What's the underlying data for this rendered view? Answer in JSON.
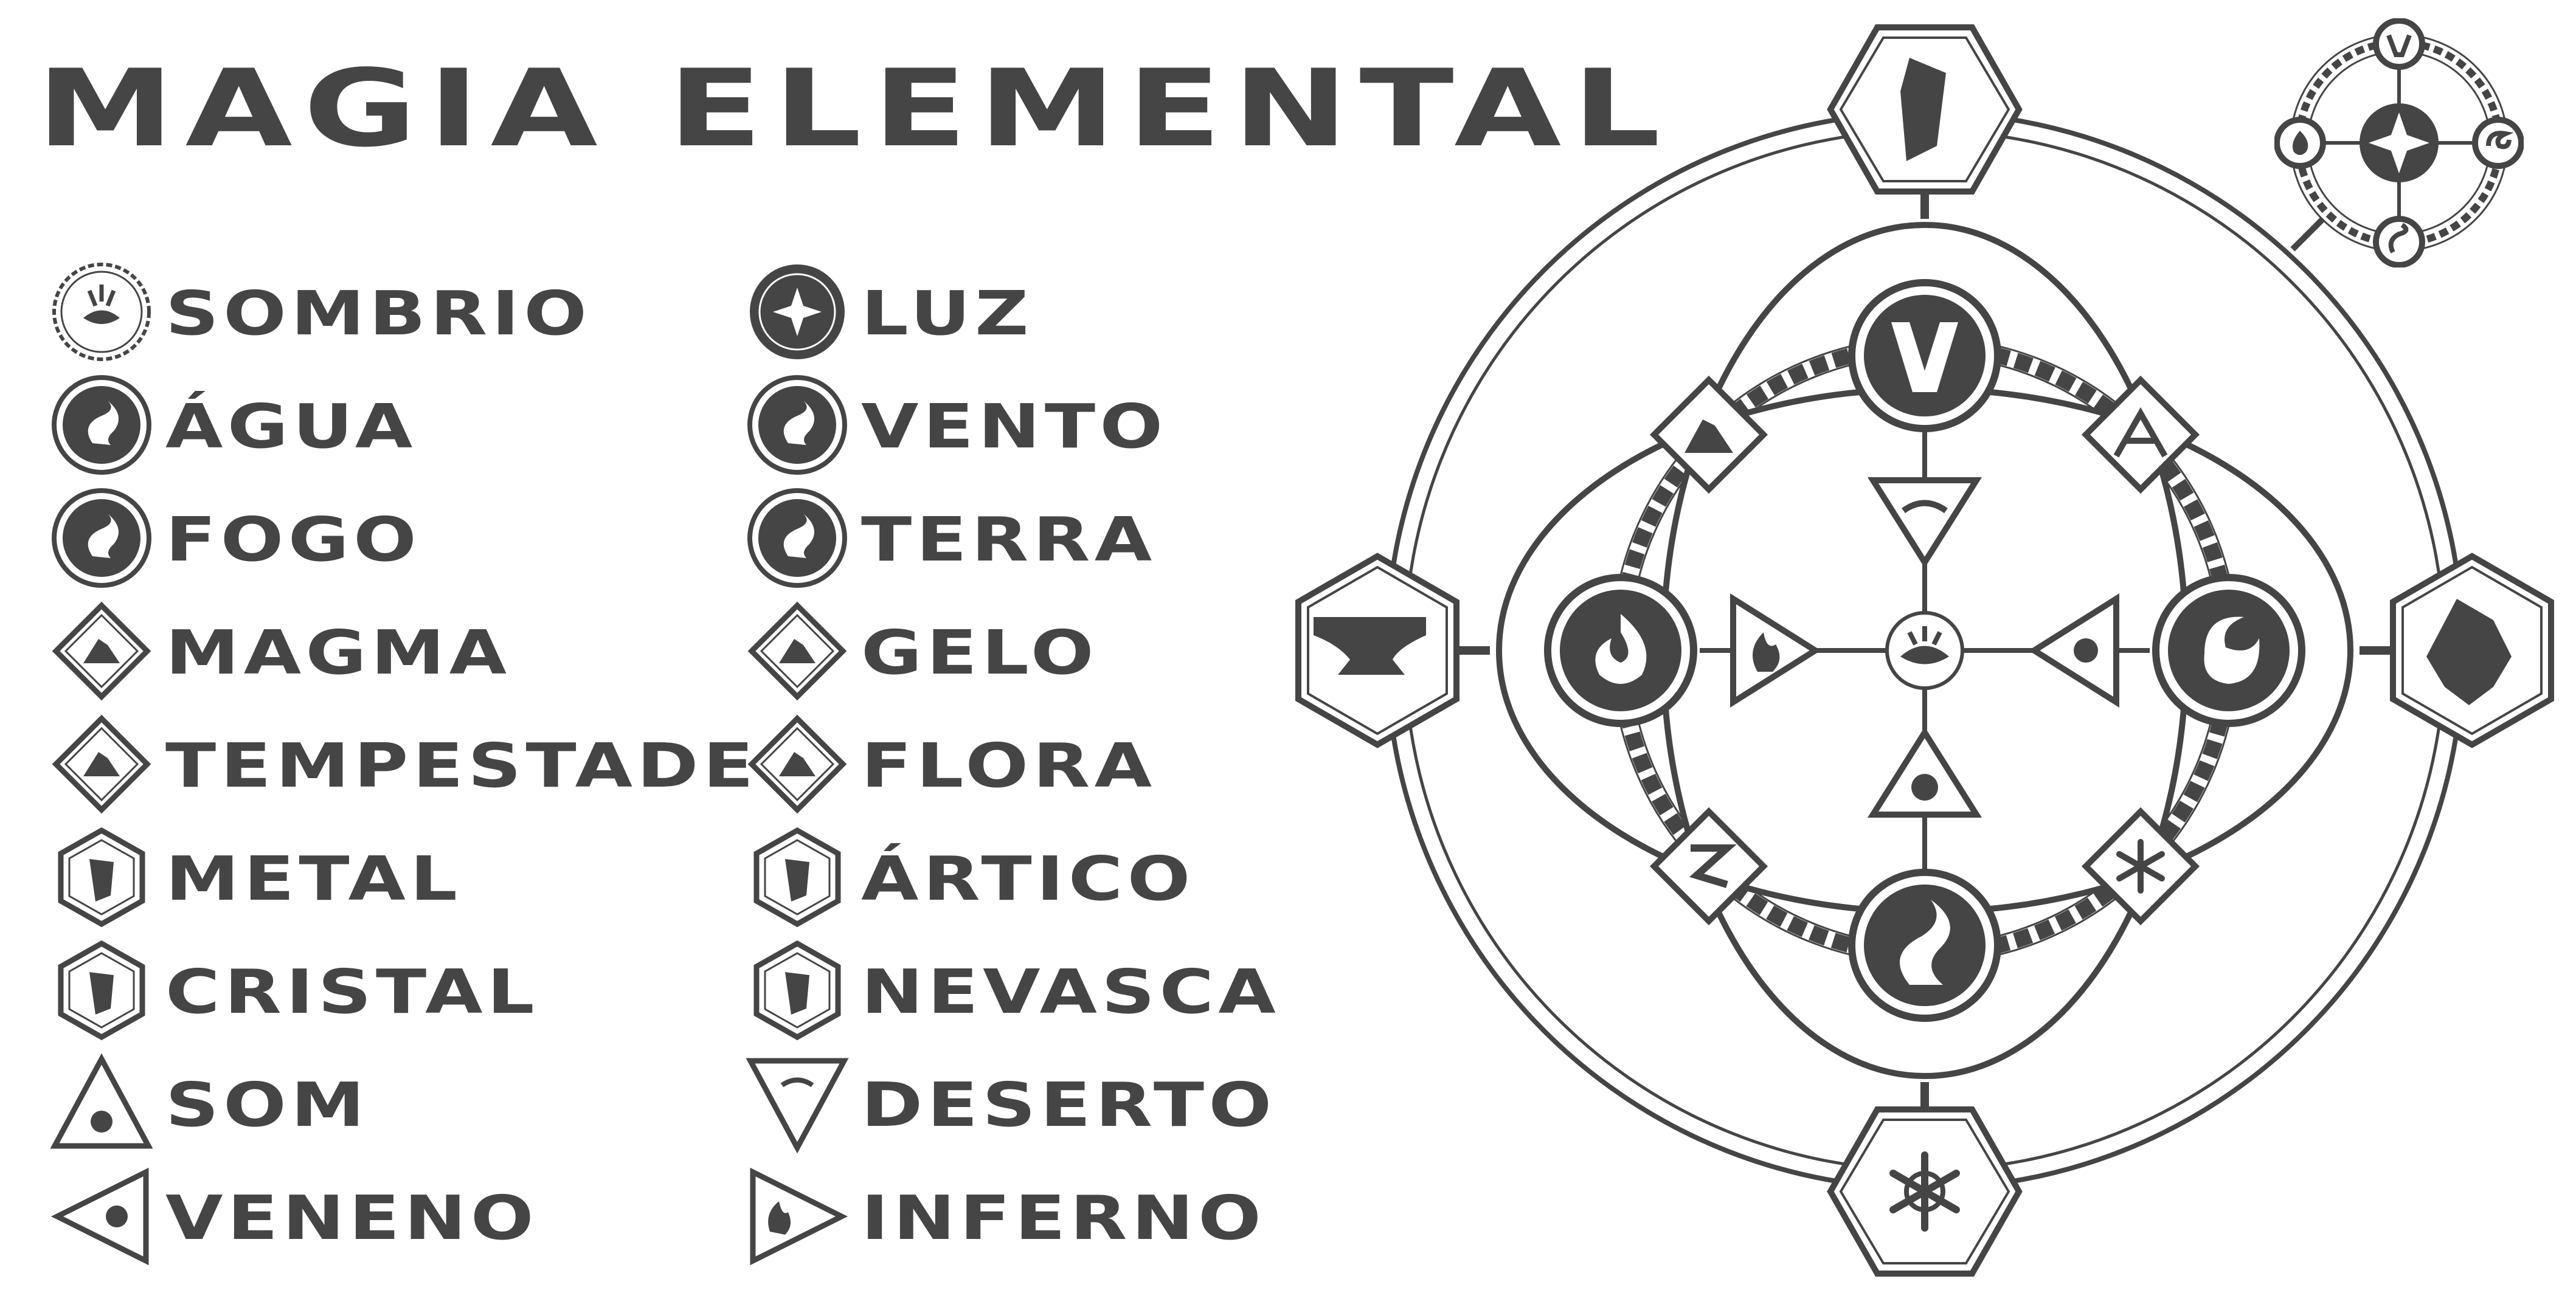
{
  "title": "MAGIA ELEMENTAL",
  "colors": {
    "ink": "#454545",
    "background": "#ffffff"
  },
  "legend_left": [
    {
      "label": "SOMBRIO",
      "icon": "sombrio-eye-icon",
      "shape": "circle-light"
    },
    {
      "label": "ÁGUA",
      "icon": "agua-wave-icon",
      "shape": "circle"
    },
    {
      "label": "FOGO",
      "icon": "fogo-flame-icon",
      "shape": "circle"
    },
    {
      "label": "MAGMA",
      "icon": "magma-volcano-icon",
      "shape": "diamond"
    },
    {
      "label": "TEMPESTADE",
      "icon": "tempestade-bolt-icon",
      "shape": "diamond"
    },
    {
      "label": "METAL",
      "icon": "metal-anvil-icon",
      "shape": "hexagon"
    },
    {
      "label": "CRISTAL",
      "icon": "cristal-gem-icon",
      "shape": "hexagon"
    },
    {
      "label": "SOM",
      "icon": "som-eye-icon",
      "shape": "triangle-up"
    },
    {
      "label": "VENENO",
      "icon": "veneno-skull-icon",
      "shape": "triangle-left"
    }
  ],
  "legend_right": [
    {
      "label": "LUZ",
      "icon": "luz-star-icon",
      "shape": "circle-dark"
    },
    {
      "label": "VENTO",
      "icon": "vento-wind-icon",
      "shape": "circle"
    },
    {
      "label": "TERRA",
      "icon": "terra-v-icon",
      "shape": "circle"
    },
    {
      "label": "GELO",
      "icon": "gelo-snowflake-icon",
      "shape": "diamond"
    },
    {
      "label": "FLORA",
      "icon": "flora-leaf-icon",
      "shape": "diamond"
    },
    {
      "label": "ÁRTICO",
      "icon": "artico-iceberg-icon",
      "shape": "hexagon"
    },
    {
      "label": "NEVASCA",
      "icon": "nevasca-snow-icon",
      "shape": "hexagon"
    },
    {
      "label": "DESERTO",
      "icon": "deserto-dune-icon",
      "shape": "triangle-down"
    },
    {
      "label": "INFERNO",
      "icon": "inferno-flame-icon",
      "shape": "triangle-right"
    }
  ]
}
